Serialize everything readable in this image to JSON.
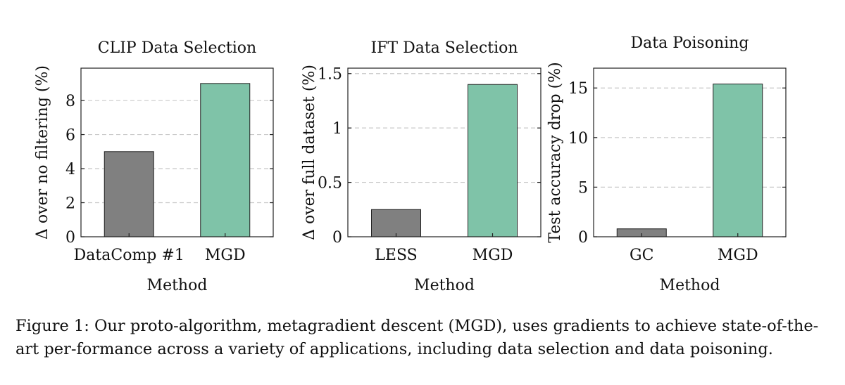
{
  "chart_data": [
    {
      "type": "bar",
      "title": "CLIP Data Selection",
      "xlabel": "Method",
      "ylabel": "Δ over no filtering (%)",
      "categories": [
        "DataComp #1",
        "MGD"
      ],
      "values": [
        5,
        9
      ],
      "ylim": [
        0,
        9.9
      ],
      "yticks": [
        0,
        2,
        4,
        6,
        8
      ],
      "ytick_labels": [
        "0",
        "2",
        "4",
        "6",
        "8"
      ],
      "grid": "horizontal dashed",
      "colors": [
        "#808080",
        "#7fc3a8"
      ]
    },
    {
      "type": "bar",
      "title": "IFT Data Selection",
      "xlabel": "Method",
      "ylabel": "Δ over full dataset (%)",
      "categories": [
        "LESS",
        "MGD"
      ],
      "values": [
        0.25,
        1.4
      ],
      "ylim": [
        0,
        1.55
      ],
      "yticks": [
        0,
        0.5,
        1,
        1.5
      ],
      "ytick_labels": [
        "0",
        "0.5",
        "1",
        "1.5"
      ],
      "grid": "horizontal dashed",
      "colors": [
        "#808080",
        "#7fc3a8"
      ]
    },
    {
      "type": "bar",
      "title": "Data Poisoning",
      "xlabel": "Method",
      "ylabel": "Test accuracy drop (%)",
      "categories": [
        "GC",
        "MGD"
      ],
      "values": [
        0.8,
        15.4
      ],
      "ylim": [
        0,
        17
      ],
      "yticks": [
        0,
        5,
        10,
        15
      ],
      "ytick_labels": [
        "0",
        "5",
        "10",
        "15"
      ],
      "grid": "horizontal dashed",
      "colors": [
        "#808080",
        "#7fc3a8"
      ]
    }
  ],
  "caption": "Figure 1: Our proto-algorithm, metagradient descent (MGD), uses gradients to achieve state-of-the-art per-formance across a variety of applications, including data selection and data poisoning."
}
